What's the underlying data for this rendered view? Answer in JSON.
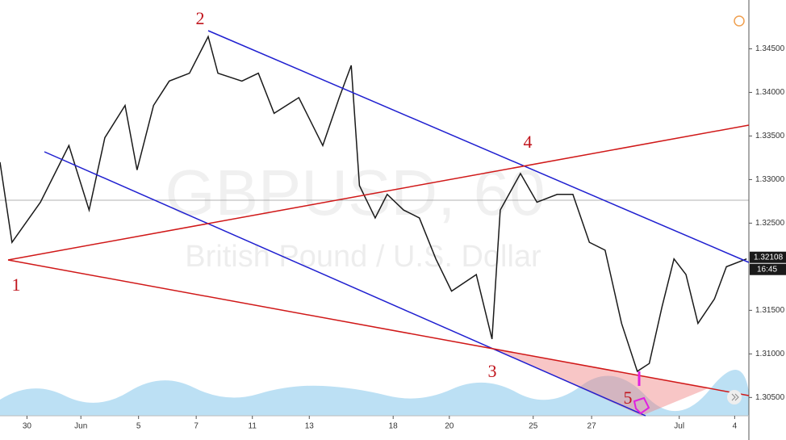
{
  "chart_data": {
    "type": "line",
    "title": "GBPUSD, 60",
    "subtitle": "British Pound / U.S. Dollar",
    "annotations": [
      "1",
      "2",
      "3",
      "4",
      "5"
    ],
    "x": [
      0,
      1.6,
      5.4,
      9.2,
      11.9,
      14.0,
      16.7,
      18.3,
      20.5,
      22.6,
      25.3,
      27.8,
      29.1,
      32.3,
      34.5,
      36.6,
      39.9,
      43.1,
      45.3,
      46.9,
      48.0,
      50.1,
      51.7,
      53.9,
      56.0,
      58.2,
      60.3,
      63.6,
      65.7,
      66.8,
      69.5,
      71.7,
      74.4,
      76.5,
      78.7,
      80.8,
      83.0,
      85.1,
      86.7,
      88.4,
      90.0,
      91.6,
      93.2,
      95.4,
      97.0,
      99.7
    ],
    "series": [
      {
        "name": "GBPUSD",
        "color": "#1a1a1a",
        "values": [
          1.332,
          1.3228,
          1.3274,
          1.3339,
          1.3265,
          1.3348,
          1.3385,
          1.3311,
          1.3385,
          1.3413,
          1.3422,
          1.3464,
          1.3422,
          1.3413,
          1.3422,
          1.3376,
          1.3394,
          1.3339,
          1.3394,
          1.3431,
          1.3293,
          1.3256,
          1.3283,
          1.3265,
          1.3256,
          1.3209,
          1.3172,
          1.3191,
          1.3117,
          1.3265,
          1.3307,
          1.3274,
          1.3283,
          1.3283,
          1.3228,
          1.3219,
          1.3135,
          1.308,
          1.3089,
          1.3154,
          1.3209,
          1.3191,
          1.3135,
          1.3163,
          1.32,
          1.3209
        ]
      }
    ],
    "xlim": [
      0,
      100
    ],
    "xticks": [
      {
        "value": 3.6,
        "label": "30"
      },
      {
        "value": 10.8,
        "label": "Jun"
      },
      {
        "value": 18.5,
        "label": "5"
      },
      {
        "value": 26.2,
        "label": "7"
      },
      {
        "value": 33.7,
        "label": "11"
      },
      {
        "value": 41.3,
        "label": "13"
      },
      {
        "value": 52.5,
        "label": "18"
      },
      {
        "value": 60.0,
        "label": "20"
      },
      {
        "value": 71.2,
        "label": "25"
      },
      {
        "value": 79.0,
        "label": "27"
      },
      {
        "value": 90.7,
        "label": "Jul"
      },
      {
        "value": 98.1,
        "label": "4"
      }
    ],
    "ylim": [
      1.3029,
      1.3506
    ],
    "yticks": [
      {
        "value": 1.345,
        "label": "1.34500"
      },
      {
        "value": 1.34,
        "label": "1.34000"
      },
      {
        "value": 1.335,
        "label": "1.33500"
      },
      {
        "value": 1.33,
        "label": "1.33000"
      },
      {
        "value": 1.325,
        "label": "1.32500"
      },
      {
        "value": 1.315,
        "label": "1.31500"
      },
      {
        "value": 1.31,
        "label": "1.31000"
      },
      {
        "value": 1.305,
        "label": "1.30500"
      }
    ],
    "last_price": 1.32108,
    "last_time": "16:45"
  }
}
